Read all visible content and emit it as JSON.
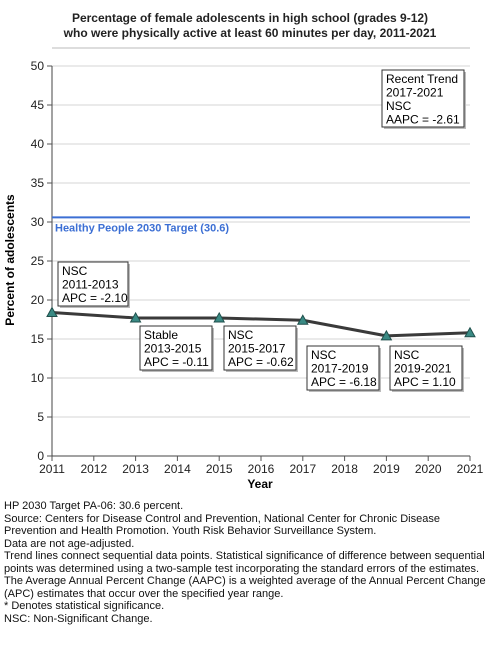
{
  "chart_data": {
    "type": "line",
    "title": [
      "Percentage of female adolescents in high school (grades 9-12)",
      "who were physically active at least 60 minutes per day, 2011-2021"
    ],
    "xlabel": "Year",
    "ylabel": "Percent of adolescents",
    "xlim": [
      2011,
      2021
    ],
    "ylim": [
      0,
      50
    ],
    "x_ticks": [
      2011,
      2012,
      2013,
      2014,
      2015,
      2016,
      2017,
      2018,
      2019,
      2020,
      2021
    ],
    "y_ticks": [
      0,
      5,
      10,
      15,
      20,
      25,
      30,
      35,
      40,
      45,
      50
    ],
    "grid": "horizontal",
    "series": [
      {
        "x": [
          2011,
          2013,
          2015,
          2017,
          2019,
          2021
        ],
        "y": [
          18.4,
          17.7,
          17.7,
          17.4,
          15.4,
          15.8
        ],
        "color": "#3a3a3a",
        "marker_color": "#3a8a84"
      }
    ],
    "target": {
      "value": 30.6,
      "label": "Healthy People 2030 Target (30.6)",
      "color": "#3c6fd4"
    },
    "annotations": [
      {
        "lines": [
          "NSC",
          "2011-2013",
          "APC = -2.10"
        ]
      },
      {
        "lines": [
          "Stable",
          "2013-2015",
          "APC = -0.11"
        ]
      },
      {
        "lines": [
          "NSC",
          "2015-2017",
          "APC = -0.62"
        ]
      },
      {
        "lines": [
          "NSC",
          "2017-2019",
          "APC = -6.18"
        ]
      },
      {
        "lines": [
          "NSC",
          "2019-2021",
          "APC =  1.10"
        ]
      },
      {
        "lines": [
          "Recent Trend",
          "2017-2021",
          "NSC",
          "AAPC = -2.61"
        ]
      }
    ]
  },
  "notes": [
    "HP 2030 Target PA-06: 30.6 percent.",
    "Source: Centers for Disease Control and Prevention, National Center for Chronic Disease Prevention and Health Promotion. Youth Risk Behavior Surveillance System.",
    "Data are not age-adjusted.",
    "Trend lines connect sequential data points. Statistical significance of difference between sequential points was determined using a two-sample test incorporating the standard errors of the estimates.",
    "The Average Annual Percent Change (AAPC) is a weighted average of the Annual Percent Change (APC) estimates that occur over the specified year range.",
    "* Denotes statistical significance.",
    "NSC: Non-Significant Change."
  ]
}
